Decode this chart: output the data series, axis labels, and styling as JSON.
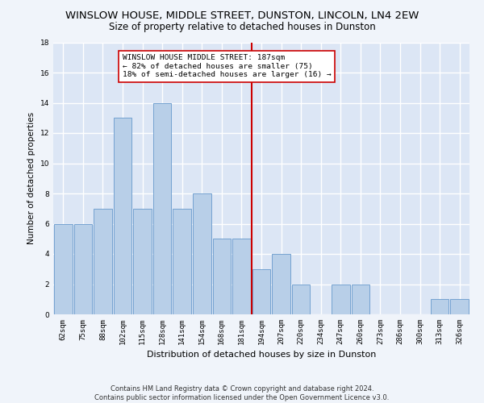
{
  "title": "WINSLOW HOUSE, MIDDLE STREET, DUNSTON, LINCOLN, LN4 2EW",
  "subtitle": "Size of property relative to detached houses in Dunston",
  "xlabel": "Distribution of detached houses by size in Dunston",
  "ylabel": "Number of detached properties",
  "footnote1": "Contains HM Land Registry data © Crown copyright and database right 2024.",
  "footnote2": "Contains public sector information licensed under the Open Government Licence v3.0.",
  "bar_labels": [
    "62sqm",
    "75sqm",
    "88sqm",
    "102sqm",
    "115sqm",
    "128sqm",
    "141sqm",
    "154sqm",
    "168sqm",
    "181sqm",
    "194sqm",
    "207sqm",
    "220sqm",
    "234sqm",
    "247sqm",
    "260sqm",
    "273sqm",
    "286sqm",
    "300sqm",
    "313sqm",
    "326sqm"
  ],
  "bar_values": [
    6,
    6,
    7,
    13,
    7,
    14,
    7,
    8,
    5,
    5,
    3,
    4,
    2,
    0,
    2,
    2,
    0,
    0,
    0,
    1,
    1
  ],
  "bar_color": "#b8cfe8",
  "bar_edge_color": "#6699cc",
  "background_color": "#dce6f5",
  "fig_background_color": "#f0f4fa",
  "grid_color": "#ffffff",
  "vline_x": 9.5,
  "vline_color": "#cc0000",
  "annotation_text": "WINSLOW HOUSE MIDDLE STREET: 187sqm\n← 82% of detached houses are smaller (75)\n18% of semi-detached houses are larger (16) →",
  "annotation_box_color": "#ffffff",
  "annotation_box_edge": "#cc0000",
  "ylim": [
    0,
    18
  ],
  "yticks": [
    0,
    2,
    4,
    6,
    8,
    10,
    12,
    14,
    16,
    18
  ],
  "title_fontsize": 9.5,
  "subtitle_fontsize": 8.5,
  "annot_fontsize": 6.8,
  "xlabel_fontsize": 8,
  "ylabel_fontsize": 7.5,
  "tick_fontsize": 6.5
}
